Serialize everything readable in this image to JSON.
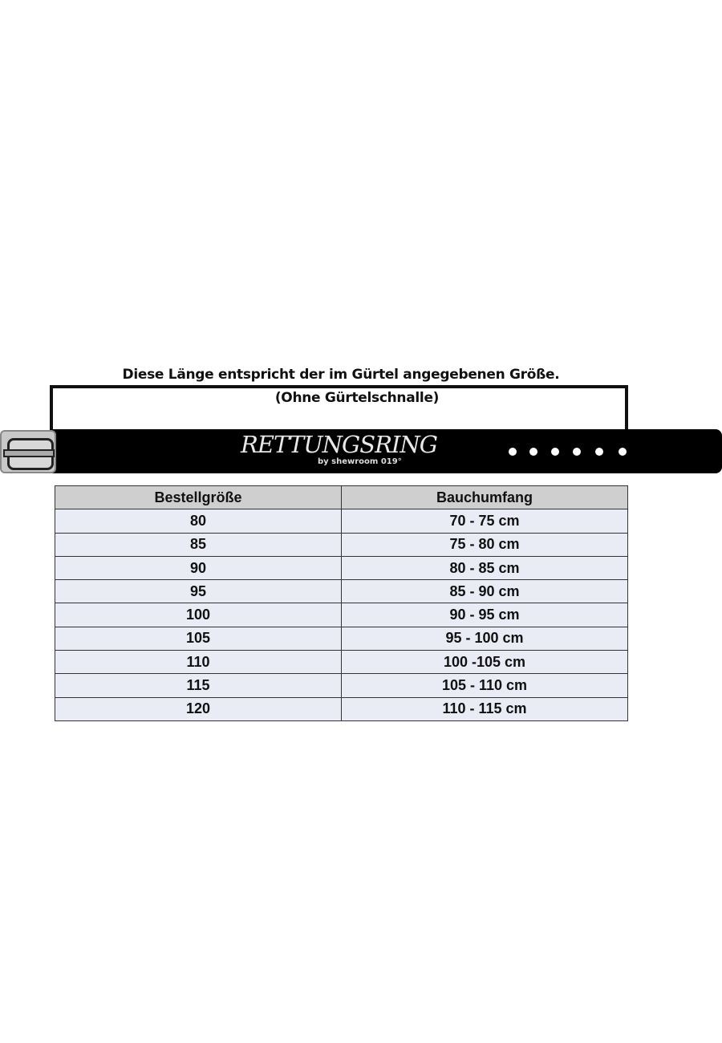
{
  "caption": {
    "line1": "Diese Länge entspricht der im Gürtel angegebenen Größe.",
    "line2": "(Ohne Gürtelschnalle)"
  },
  "belt": {
    "logo": "RETTUNGSRING",
    "logo_sub": "by shewroom 019°",
    "holes": 6,
    "color": "#000000"
  },
  "table": {
    "headers": [
      "Bestellgröße",
      "Bauchumfang"
    ],
    "rows": [
      [
        "80",
        "70 - 75 cm"
      ],
      [
        "85",
        "75 - 80 cm"
      ],
      [
        "90",
        "80 - 85 cm"
      ],
      [
        "95",
        "85 - 90 cm"
      ],
      [
        "100",
        "90 - 95 cm"
      ],
      [
        "105",
        "95 - 100 cm"
      ],
      [
        "110",
        "100 -105 cm"
      ],
      [
        "115",
        "105 - 110 cm"
      ],
      [
        "120",
        "110 - 115 cm"
      ]
    ]
  }
}
